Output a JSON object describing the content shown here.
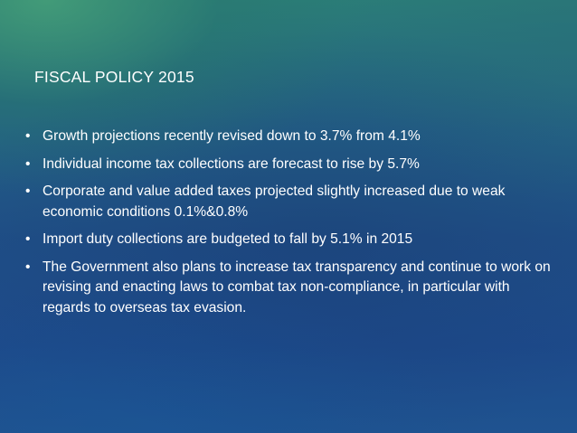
{
  "slide": {
    "title": "FISCAL POLICY 2015",
    "bullet_symbol": "•",
    "bullets": [
      "Growth projections recently revised down to 3.7% from 4.1%",
      "Individual income tax collections are forecast to rise by 5.7%",
      "Corporate and value added taxes projected slightly increased due to weak economic conditions 0.1%&0.8%",
      "Import duty collections are budgeted to fall by 5.1% in 2015",
      "The Government also plans to increase tax transparency and continue to work on revising and enacting laws to combat tax non-compliance, in particular with regards to overseas tax evasion."
    ]
  }
}
